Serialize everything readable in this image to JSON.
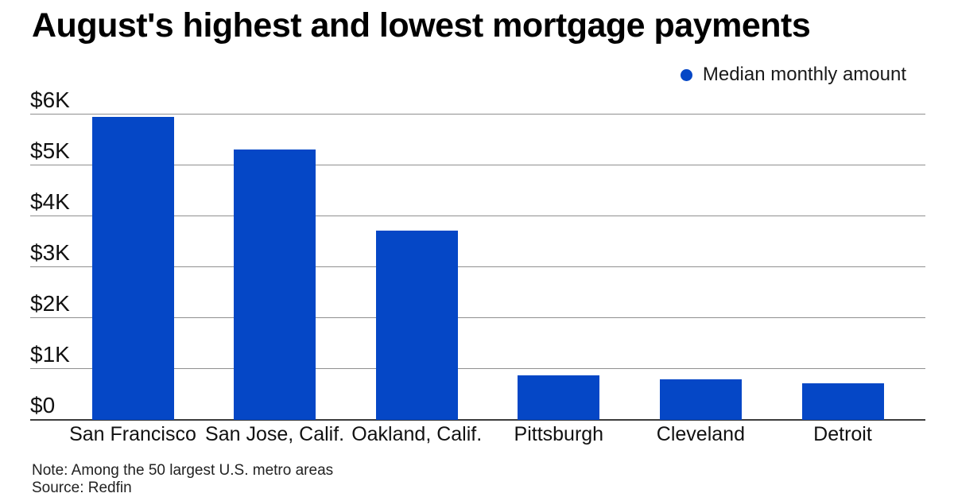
{
  "header": {
    "title": "August's highest and lowest mortgage payments"
  },
  "legend": {
    "label": "Median monthly amount"
  },
  "footer": {
    "note": "Note: Among the 50 largest U.S. metro areas",
    "source": "Source: Redfin"
  },
  "colors": {
    "bar_blue": "#0547C6",
    "gridline_gray": "#909090",
    "axis_dark": "#3c3c3c",
    "text_black": "#000000"
  },
  "chart_data": {
    "type": "bar",
    "title": "August's highest and lowest mortgage payments",
    "series_name": "Median monthly amount",
    "categories": [
      "San Francisco",
      "San Jose, Calif.",
      "Oakland, Calif.",
      "Pittsburgh",
      "Cleveland",
      "Detroit"
    ],
    "values": [
      5940,
      5310,
      3710,
      880,
      790,
      720
    ],
    "xlabel": "",
    "ylabel": "",
    "ylim": [
      0,
      6000
    ],
    "y_ticks": [
      {
        "value": 0,
        "label": "$0"
      },
      {
        "value": 1000,
        "label": "$1K"
      },
      {
        "value": 2000,
        "label": "$2K"
      },
      {
        "value": 3000,
        "label": "$3K"
      },
      {
        "value": 4000,
        "label": "$4K"
      },
      {
        "value": 5000,
        "label": "$5K"
      },
      {
        "value": 6000,
        "label": "$6K"
      }
    ],
    "grid": "horizontal",
    "legend_position": "top-right"
  }
}
